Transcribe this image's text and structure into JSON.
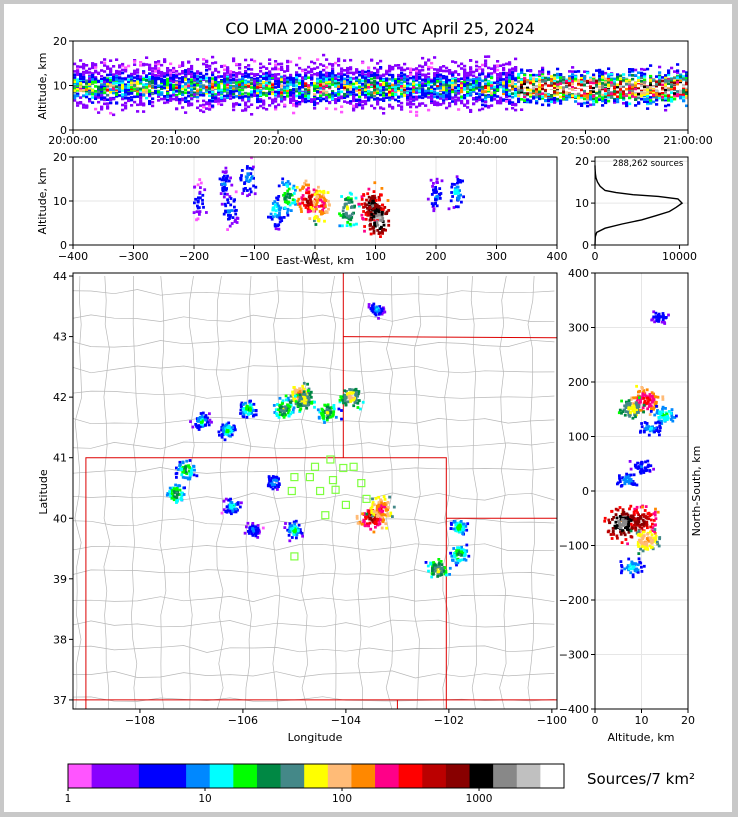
{
  "figure": {
    "title": "CO LMA 2000-2100 UTC April 25, 2024",
    "colorbar_label": "Sources/7 km²"
  },
  "chart_data": [
    {
      "name": "time-altitude",
      "type": "heatmap",
      "xlabel": "",
      "ylabel": "Altitude, km",
      "x_ticks": [
        "20:00:00",
        "20:10:00",
        "20:20:00",
        "20:30:00",
        "20:40:00",
        "20:50:00",
        "21:00:00"
      ],
      "y_ticks": [
        0,
        10,
        20
      ],
      "ylim": [
        0,
        20
      ],
      "grid": true
    },
    {
      "name": "east-west-altitude",
      "type": "heatmap",
      "xlabel": "East-West, km",
      "ylabel": "Altitude, km",
      "x_ticks": [
        -400,
        -300,
        -200,
        -100,
        0,
        100,
        200,
        300,
        400
      ],
      "y_ticks": [
        0,
        10,
        20
      ],
      "xlim": [
        -400,
        400
      ],
      "ylim": [
        0,
        20
      ],
      "grid": true,
      "cells": [
        {
          "x": -190,
          "z": 10,
          "n": 8
        },
        {
          "x": -150,
          "z": 14,
          "n": 10
        },
        {
          "x": -140,
          "z": 8,
          "n": 12
        },
        {
          "x": -110,
          "z": 15,
          "n": 14
        },
        {
          "x": -65,
          "z": 8,
          "n": 18
        },
        {
          "x": -45,
          "z": 11,
          "n": 40
        },
        {
          "x": -10,
          "z": 10,
          "n": 700
        },
        {
          "x": 10,
          "z": 9,
          "n": 300
        },
        {
          "x": 55,
          "z": 8,
          "n": 80
        },
        {
          "x": 95,
          "z": 9,
          "n": 1500
        },
        {
          "x": 105,
          "z": 6,
          "n": 2500
        },
        {
          "x": 200,
          "z": 11,
          "n": 10
        },
        {
          "x": 235,
          "z": 12,
          "n": 16
        }
      ]
    },
    {
      "name": "source-altitude-histogram",
      "type": "line",
      "annotation": "288,262 sources",
      "xlabel": "",
      "ylabel": "",
      "x_ticks": [
        0,
        10000
      ],
      "y_ticks": [
        0,
        10,
        20
      ],
      "xlim": [
        0,
        11000
      ],
      "ylim": [
        0,
        21
      ],
      "points": [
        [
          0,
          0
        ],
        [
          30,
          2
        ],
        [
          200,
          3
        ],
        [
          1200,
          4
        ],
        [
          3200,
          5
        ],
        [
          5500,
          6
        ],
        [
          7200,
          7
        ],
        [
          8800,
          8
        ],
        [
          9600,
          9
        ],
        [
          10300,
          10
        ],
        [
          9800,
          11
        ],
        [
          7500,
          11.6
        ],
        [
          4500,
          12
        ],
        [
          2500,
          12.5
        ],
        [
          1200,
          13
        ],
        [
          600,
          14
        ],
        [
          300,
          15
        ],
        [
          120,
          16
        ],
        [
          50,
          17
        ],
        [
          10,
          18
        ],
        [
          0,
          19
        ]
      ]
    },
    {
      "name": "plan-view",
      "type": "heatmap",
      "xlabel": "Longitude",
      "ylabel": "Latitude",
      "x_ticks": [
        -108,
        -106,
        -104,
        -102,
        -100
      ],
      "y_ticks": [
        37,
        38,
        39,
        40,
        41,
        42,
        43,
        44
      ],
      "xlim": [
        -109.3,
        -99.9
      ],
      "ylim": [
        36.85,
        44.05
      ],
      "cells": [
        {
          "lon": -106.8,
          "lat": 41.6,
          "n": 20
        },
        {
          "lon": -106.3,
          "lat": 41.45,
          "n": 25
        },
        {
          "lon": -105.9,
          "lat": 41.8,
          "n": 30
        },
        {
          "lon": -105.2,
          "lat": 41.8,
          "n": 60
        },
        {
          "lon": -104.9,
          "lat": 42.05,
          "n": 200
        },
        {
          "lon": -104.8,
          "lat": 41.95,
          "n": 90
        },
        {
          "lon": -104.35,
          "lat": 41.75,
          "n": 60
        },
        {
          "lon": -103.9,
          "lat": 42.0,
          "n": 120
        },
        {
          "lon": -103.4,
          "lat": 43.45,
          "n": 15
        },
        {
          "lon": -107.1,
          "lat": 40.8,
          "n": 40
        },
        {
          "lon": -107.3,
          "lat": 40.4,
          "n": 45
        },
        {
          "lon": -106.2,
          "lat": 40.2,
          "n": 20
        },
        {
          "lon": -105.4,
          "lat": 40.6,
          "n": 15
        },
        {
          "lon": -105.0,
          "lat": 39.8,
          "n": 25
        },
        {
          "lon": -105.8,
          "lat": 39.8,
          "n": 12
        },
        {
          "lon": -103.5,
          "lat": 40.0,
          "n": 700
        },
        {
          "lon": -103.3,
          "lat": 40.15,
          "n": 300
        },
        {
          "lon": -102.2,
          "lat": 39.15,
          "n": 80
        },
        {
          "lon": -101.8,
          "lat": 39.4,
          "n": 40
        },
        {
          "lon": -101.8,
          "lat": 39.85,
          "n": 30
        }
      ],
      "stations": [
        [
          -104.3,
          40.97
        ],
        [
          -104.05,
          40.83
        ],
        [
          -104.6,
          40.85
        ],
        [
          -103.85,
          40.85
        ],
        [
          -105.0,
          40.68
        ],
        [
          -104.7,
          40.68
        ],
        [
          -104.25,
          40.63
        ],
        [
          -103.7,
          40.58
        ],
        [
          -105.05,
          40.45
        ],
        [
          -104.5,
          40.45
        ],
        [
          -104.2,
          40.47
        ],
        [
          -103.6,
          40.32
        ],
        [
          -104.0,
          40.22
        ],
        [
          -104.4,
          40.05
        ],
        [
          -105.0,
          39.37
        ]
      ]
    },
    {
      "name": "altitude-north-south",
      "type": "heatmap",
      "xlabel": "Altitude, km",
      "ylabel": "North-South, km",
      "x_ticks": [
        0,
        10,
        20
      ],
      "y_ticks": [
        -400,
        -300,
        -200,
        -100,
        0,
        100,
        200,
        300,
        400
      ],
      "xlim": [
        0,
        20
      ],
      "ylim": [
        -400,
        400
      ],
      "grid": true,
      "cells": [
        {
          "z": 14,
          "y": 320,
          "n": 6
        },
        {
          "z": 11,
          "y": 165,
          "n": 400
        },
        {
          "z": 8,
          "y": 150,
          "n": 80
        },
        {
          "z": 15,
          "y": 140,
          "n": 20
        },
        {
          "z": 12,
          "y": 115,
          "n": 12
        },
        {
          "z": 10,
          "y": 45,
          "n": 8
        },
        {
          "z": 7,
          "y": 20,
          "n": 12
        },
        {
          "z": 10,
          "y": -55,
          "n": 900
        },
        {
          "z": 6,
          "y": -60,
          "n": 2000
        },
        {
          "z": 11,
          "y": -90,
          "n": 150
        },
        {
          "z": 8,
          "y": -140,
          "n": 15
        }
      ]
    }
  ],
  "colorbar": {
    "tick_labels": [
      "1",
      "10",
      "100",
      "1000"
    ],
    "colors": [
      "#ff55ff",
      "#8800ff",
      "#8800ff",
      "#0000ff",
      "#0000ff",
      "#0088ff",
      "#00ffff",
      "#00ff00",
      "#008844",
      "#448888",
      "#ffff00",
      "#ffbb77",
      "#ff8800",
      "#ff0088",
      "#ff0000",
      "#bb0000",
      "#880000",
      "#000000",
      "#888888",
      "#c0c0c0",
      "#ffffff"
    ]
  }
}
